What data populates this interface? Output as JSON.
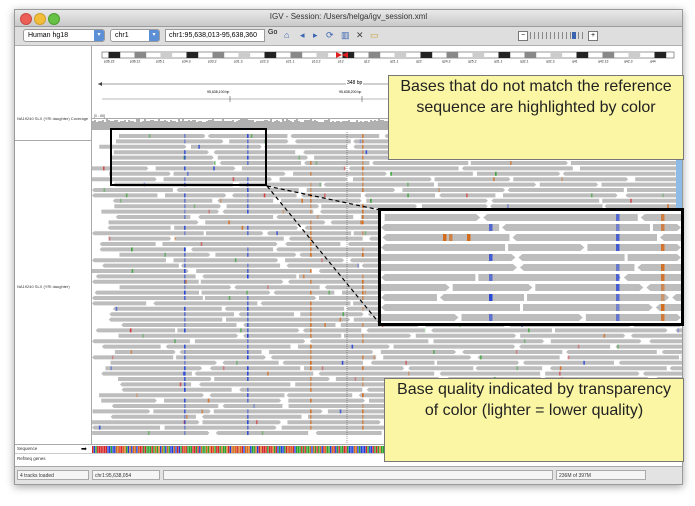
{
  "window": {
    "title": "IGV - Session: /Users/helga/igv_session.xml"
  },
  "toolbar": {
    "genome": "Human hg18",
    "chromosome": "chr1",
    "locus": "chr1:95,638,013-95,638,360",
    "go_label": "Go",
    "icons": [
      "home-icon",
      "back-icon",
      "forward-icon",
      "refresh-icon",
      "roi-icon",
      "close-icon",
      "popup-icon"
    ]
  },
  "ideogram": {
    "bands": [
      "p36.23",
      "p36.12",
      "p35.1",
      "p34.3",
      "p33.2",
      "p31.3",
      "p22.3",
      "p21.1",
      "p13.2",
      "p12",
      "q12",
      "q21.1",
      "q22",
      "q24.2",
      "q25.2",
      "q31.1",
      "q32.1",
      "q32.3",
      "q41",
      "q42.13",
      "q42.3",
      "q44"
    ]
  },
  "ruler": {
    "span": "348 bp",
    "tick1": "95,638,100 bp",
    "tick2": "95,638,200 bp"
  },
  "tracks": {
    "coverage_label": "NA19240 SLX (YRI daughter) Coverage",
    "coverage_range": "[0 - 65]",
    "reads_label": "NA19240 SLX (YRI daughter)",
    "sequence_label": "Sequence",
    "refseq_label": "RefSeq genes"
  },
  "status": {
    "tracks_loaded": "4 tracks loaded",
    "position": "chr1:95,638,054",
    "memory": "236M of 397M"
  },
  "callouts": {
    "mismatch": "Bases that do not match the reference sequence are highlighted by color",
    "quality": "Base quality indicated by transparency of color (lighter = lower quality)"
  },
  "colors": {
    "read_gray": "#bdbdbd",
    "base_A": "#2ca02c",
    "base_C": "#1f3fd8",
    "base_G": "#d46a1a",
    "base_T": "#d62728",
    "callout_fill": "#fbf6a4"
  }
}
